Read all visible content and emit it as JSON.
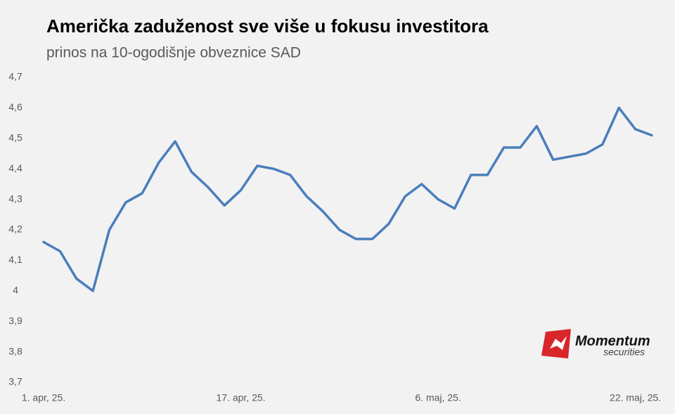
{
  "chart_data": {
    "type": "line",
    "title": "Američka zaduženost sve više u fokusu investitora",
    "subtitle": "prinos na 10-ogodišnje obveznice SAD",
    "categories": [
      "1. apr, 25.",
      null,
      null,
      null,
      null,
      null,
      null,
      null,
      null,
      null,
      null,
      null,
      "17. apr, 25.",
      null,
      null,
      null,
      null,
      null,
      null,
      null,
      null,
      null,
      null,
      null,
      "6. maj, 25.",
      null,
      null,
      null,
      null,
      null,
      null,
      null,
      null,
      null,
      null,
      null,
      "22. maj, 25.",
      null
    ],
    "series": [
      {
        "name": "prinos",
        "color": "#4a7ebb",
        "values": [
          4.16,
          4.13,
          4.04,
          4.0,
          4.2,
          4.29,
          4.32,
          4.42,
          4.49,
          4.39,
          4.34,
          4.28,
          4.33,
          4.41,
          4.4,
          4.38,
          4.31,
          4.26,
          4.2,
          4.17,
          4.17,
          4.22,
          4.31,
          4.35,
          4.3,
          4.27,
          4.38,
          4.38,
          4.47,
          4.47,
          4.54,
          4.43,
          4.44,
          4.45,
          4.48,
          4.6,
          4.53,
          4.51
        ]
      }
    ],
    "ylim": [
      3.7,
      4.7
    ],
    "yticks": [
      {
        "value": 3.7,
        "label": "3,7"
      },
      {
        "value": 3.8,
        "label": "3,8"
      },
      {
        "value": 3.9,
        "label": "3,9"
      },
      4,
      {
        "value": 4.1,
        "label": "4,1"
      },
      {
        "value": 4.2,
        "label": "4,2"
      },
      {
        "value": 4.3,
        "label": "4,3"
      },
      {
        "value": 4.4,
        "label": "4,4"
      },
      {
        "value": 4.5,
        "label": "4,5"
      },
      {
        "value": 4.6,
        "label": "4,6"
      },
      {
        "value": 4.7,
        "label": "4,7"
      }
    ],
    "grid": false
  },
  "logo": {
    "name": "Momentum",
    "tagline": "securities"
  }
}
